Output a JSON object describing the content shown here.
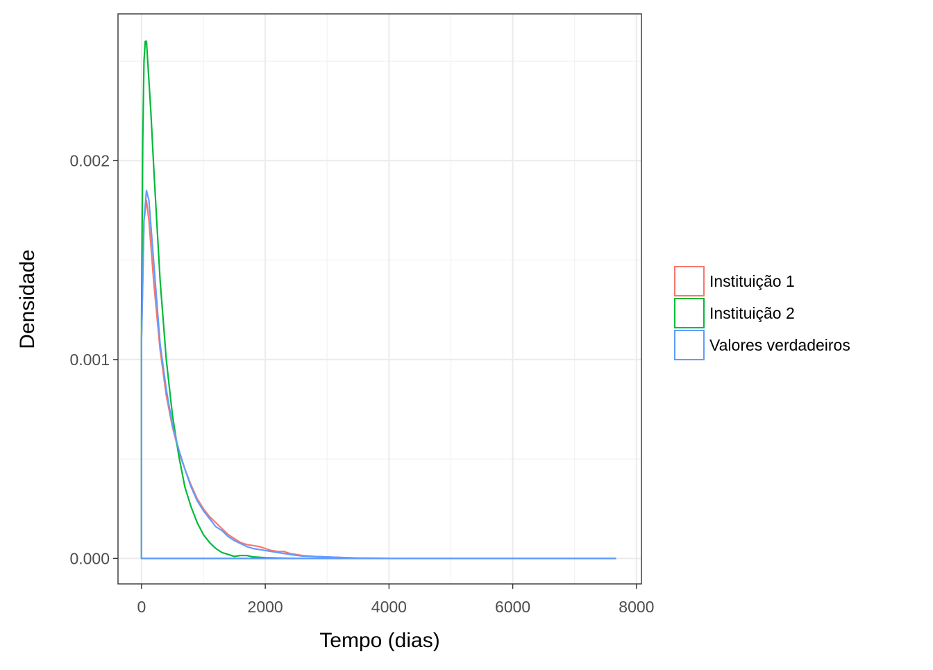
{
  "chart_data": {
    "type": "line",
    "title": "",
    "xlabel": "Tempo (dias)",
    "ylabel": "Densidade",
    "xlim": [
      -380,
      8080
    ],
    "ylim": [
      -0.000128,
      0.002738
    ],
    "x_ticks": [
      0,
      2000,
      4000,
      6000,
      8000
    ],
    "x_tick_labels": [
      "0",
      "2000",
      "4000",
      "6000",
      "8000"
    ],
    "y_ticks": [
      0.0,
      0.001,
      0.002
    ],
    "y_tick_labels": [
      "0.000",
      "0.001",
      "0.002"
    ],
    "grid": true,
    "theme": "bw",
    "legend_position": "right",
    "legend_title": "",
    "series": [
      {
        "name": "Instituição 1",
        "color": "#f8766d",
        "x": [
          0,
          40,
          80,
          120,
          200,
          300,
          400,
          500,
          600,
          700,
          800,
          900,
          1000,
          1100,
          1200,
          1300,
          1400,
          1500,
          1600,
          1700,
          1800,
          1900,
          2000,
          2100,
          2200,
          2300,
          2400,
          2600,
          2800,
          3000,
          3200,
          3500,
          4000,
          5000,
          6000,
          7660,
          7660,
          0,
          0
        ],
        "y": [
          0.0011,
          0.0017,
          0.0018,
          0.0017,
          0.00138,
          0.00105,
          0.00082,
          0.00066,
          0.00054,
          0.00045,
          0.00037,
          0.0003,
          0.00025,
          0.00021,
          0.00018,
          0.00015,
          0.00012,
          0.0001,
          8e-05,
          7e-05,
          6.5e-05,
          6e-05,
          5e-05,
          4e-05,
          3.5e-05,
          3.5e-05,
          2.5e-05,
          1.5e-05,
          1e-05,
          7e-06,
          5e-06,
          2e-06,
          1e-06,
          0,
          0,
          0,
          0,
          0,
          0.0011
        ]
      },
      {
        "name": "Instituição 2",
        "color": "#00ba38",
        "x": [
          0,
          20,
          40,
          60,
          80,
          100,
          150,
          200,
          300,
          400,
          500,
          600,
          700,
          800,
          900,
          1000,
          1100,
          1200,
          1300,
          1400,
          1500,
          1600,
          1700,
          1800,
          1900,
          2000,
          2100,
          2200,
          2400,
          2600,
          3000,
          3400,
          4000,
          5000,
          6000,
          7660,
          7660,
          0,
          0
        ],
        "y": [
          0.0012,
          0.0021,
          0.0025,
          0.0026,
          0.0026,
          0.0025,
          0.00225,
          0.00195,
          0.0014,
          0.001,
          0.00072,
          0.00052,
          0.00036,
          0.00026,
          0.00018,
          0.00012,
          8e-05,
          5e-05,
          3e-05,
          2e-05,
          1e-05,
          1.5e-05,
          1.5e-05,
          8e-06,
          6e-06,
          4e-06,
          3e-06,
          2e-06,
          1e-06,
          0,
          0,
          0,
          0,
          0,
          0,
          0,
          0,
          0,
          0.0012
        ]
      },
      {
        "name": "Valores verdadeiros",
        "color": "#619cff",
        "x": [
          0,
          40,
          80,
          120,
          200,
          300,
          400,
          500,
          600,
          700,
          800,
          900,
          1000,
          1100,
          1200,
          1300,
          1400,
          1500,
          1600,
          1700,
          1800,
          1900,
          2000,
          2100,
          2200,
          2300,
          2400,
          2600,
          2800,
          3000,
          3200,
          3500,
          4000,
          5000,
          6000,
          7660,
          7660,
          0,
          0
        ],
        "y": [
          0.0011,
          0.0017,
          0.00185,
          0.0018,
          0.00148,
          0.00108,
          0.00085,
          0.00067,
          0.00055,
          0.00045,
          0.00036,
          0.00029,
          0.00024,
          0.0002,
          0.00016,
          0.00014,
          0.00011,
          9e-05,
          7.5e-05,
          6e-05,
          5e-05,
          4.5e-05,
          4e-05,
          3.5e-05,
          3e-05,
          2.5e-05,
          2e-05,
          1.2e-05,
          1e-05,
          8e-06,
          5e-06,
          2e-06,
          1e-06,
          0,
          0,
          0,
          0,
          0,
          0.0011
        ]
      }
    ]
  }
}
